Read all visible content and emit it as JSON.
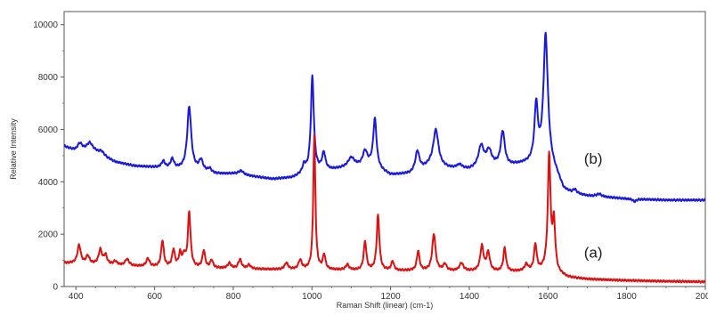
{
  "chart_data": {
    "type": "line",
    "title": "",
    "xlabel": "Raman Shift (linear) (cm-1)",
    "ylabel": "Relative Intensity",
    "xlim": [
      370,
      2000
    ],
    "ylim": [
      0,
      10500
    ],
    "x_ticks": [
      400,
      600,
      800,
      1000,
      1200,
      1400,
      1600,
      1800,
      2000
    ],
    "y_ticks": [
      0,
      2000,
      4000,
      6000,
      8000,
      10000
    ],
    "grid": false,
    "legend": "none",
    "series": [
      {
        "name": "(b)",
        "color": "#1a1adc",
        "baseline_points": [
          [
            370,
            5350
          ],
          [
            400,
            5150
          ],
          [
            450,
            5100
          ],
          [
            500,
            4750
          ],
          [
            550,
            4600
          ],
          [
            600,
            4550
          ],
          [
            650,
            4500
          ],
          [
            700,
            4450
          ],
          [
            750,
            4300
          ],
          [
            800,
            4300
          ],
          [
            850,
            4200
          ],
          [
            900,
            4100
          ],
          [
            950,
            4150
          ],
          [
            1000,
            4400
          ],
          [
            1050,
            4450
          ],
          [
            1100,
            4550
          ],
          [
            1150,
            4600
          ],
          [
            1200,
            4250
          ],
          [
            1250,
            4300
          ],
          [
            1300,
            4600
          ],
          [
            1350,
            4500
          ],
          [
            1400,
            4450
          ],
          [
            1450,
            4600
          ],
          [
            1500,
            4600
          ],
          [
            1550,
            4700
          ],
          [
            1600,
            4900
          ],
          [
            1625,
            4200
          ],
          [
            1640,
            3700
          ],
          [
            1660,
            3550
          ],
          [
            1700,
            3450
          ],
          [
            1800,
            3350
          ],
          [
            1900,
            3300
          ],
          [
            2000,
            3300
          ]
        ],
        "peaks": [
          [
            410,
            300,
            8
          ],
          [
            435,
            350,
            10
          ],
          [
            465,
            150,
            8
          ],
          [
            622,
            250,
            5
          ],
          [
            645,
            350,
            5
          ],
          [
            688,
            2400,
            6
          ],
          [
            718,
            400,
            6
          ],
          [
            740,
            150,
            6
          ],
          [
            820,
            150,
            8
          ],
          [
            980,
            300,
            5
          ],
          [
            1001,
            3600,
            4.5
          ],
          [
            1030,
            650,
            5
          ],
          [
            1100,
            350,
            10
          ],
          [
            1135,
            550,
            7
          ],
          [
            1160,
            1850,
            5
          ],
          [
            1268,
            750,
            6
          ],
          [
            1315,
            1400,
            8
          ],
          [
            1375,
            150,
            8
          ],
          [
            1430,
            800,
            8
          ],
          [
            1450,
            550,
            8
          ],
          [
            1485,
            1300,
            6
          ],
          [
            1570,
            2100,
            5
          ],
          [
            1594,
            4700,
            6.5
          ],
          [
            1668,
            150,
            6
          ],
          [
            1730,
            100,
            8
          ],
          [
            1820,
            -100,
            5
          ]
        ]
      },
      {
        "name": "(a)",
        "color": "#dd1111",
        "baseline_points": [
          [
            370,
            900
          ],
          [
            450,
            850
          ],
          [
            500,
            800
          ],
          [
            600,
            750
          ],
          [
            700,
            720
          ],
          [
            800,
            680
          ],
          [
            900,
            650
          ],
          [
            1000,
            640
          ],
          [
            1100,
            620
          ],
          [
            1200,
            600
          ],
          [
            1300,
            600
          ],
          [
            1400,
            580
          ],
          [
            1500,
            560
          ],
          [
            1580,
            600
          ],
          [
            1600,
            700
          ],
          [
            1615,
            700
          ],
          [
            1625,
            500
          ],
          [
            1650,
            350
          ],
          [
            1700,
            280
          ],
          [
            1800,
            230
          ],
          [
            1900,
            200
          ],
          [
            2000,
            180
          ]
        ],
        "peaks": [
          [
            408,
            700,
            5
          ],
          [
            430,
            300,
            5
          ],
          [
            462,
            550,
            5
          ],
          [
            475,
            350,
            5
          ],
          [
            500,
            150,
            6
          ],
          [
            530,
            250,
            6
          ],
          [
            583,
            300,
            5
          ],
          [
            620,
            1000,
            4
          ],
          [
            648,
            650,
            4
          ],
          [
            665,
            500,
            4
          ],
          [
            675,
            400,
            4
          ],
          [
            688,
            2100,
            4
          ],
          [
            725,
            650,
            4
          ],
          [
            745,
            300,
            4
          ],
          [
            790,
            200,
            5
          ],
          [
            817,
            350,
            5
          ],
          [
            840,
            150,
            5
          ],
          [
            935,
            250,
            5
          ],
          [
            970,
            350,
            5
          ],
          [
            1006,
            5100,
            3.2
          ],
          [
            1031,
            550,
            4
          ],
          [
            1090,
            200,
            5
          ],
          [
            1135,
            1100,
            4
          ],
          [
            1168,
            2100,
            4
          ],
          [
            1205,
            350,
            4
          ],
          [
            1270,
            750,
            4
          ],
          [
            1310,
            1400,
            5
          ],
          [
            1338,
            250,
            5
          ],
          [
            1380,
            300,
            6
          ],
          [
            1432,
            950,
            5
          ],
          [
            1448,
            700,
            5
          ],
          [
            1490,
            900,
            4
          ],
          [
            1545,
            250,
            5
          ],
          [
            1568,
            1000,
            4
          ],
          [
            1603,
            4300,
            4
          ],
          [
            1615,
            1700,
            4
          ]
        ]
      }
    ]
  }
}
